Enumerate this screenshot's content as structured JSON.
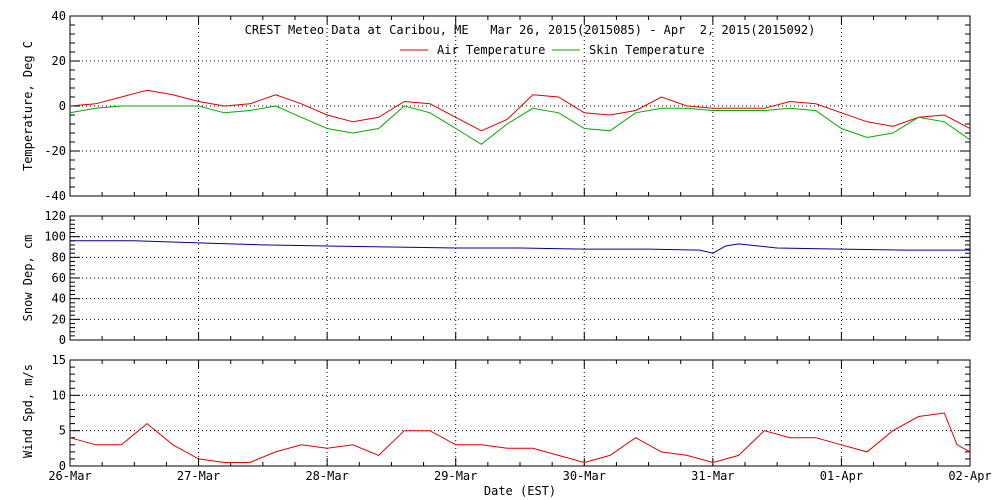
{
  "chart_data": [
    {
      "type": "line",
      "title": "CREST Meteo Data at Caribou, ME   Mar 26, 2015(2015085) - Apr  2, 2015(2015092)",
      "ylabel": "Temperature, Deg C",
      "ylim": [
        -40,
        40
      ],
      "yticks": [
        -40,
        -20,
        0,
        20,
        40
      ],
      "grid": true,
      "legend_position": "top-center",
      "x_unit": "days after 26-Mar 00:00 EST",
      "series": [
        {
          "name": "Air Temperature",
          "color": "#dd0000",
          "x": [
            0,
            0.2,
            0.4,
            0.6,
            0.8,
            1.0,
            1.2,
            1.4,
            1.6,
            1.8,
            2.0,
            2.2,
            2.4,
            2.6,
            2.8,
            3.0,
            3.2,
            3.4,
            3.6,
            3.8,
            4.0,
            4.2,
            4.4,
            4.6,
            4.8,
            5.0,
            5.2,
            5.4,
            5.6,
            5.8,
            6.0,
            6.2,
            6.4,
            6.6,
            6.8,
            7.0
          ],
          "values": [
            0,
            1,
            4,
            7,
            5,
            2,
            0,
            1,
            5,
            1,
            -4,
            -7,
            -5,
            2,
            1,
            -5,
            -11,
            -6,
            5,
            4,
            -3,
            -4,
            -2,
            4,
            0,
            -1,
            -1,
            -1,
            2,
            1,
            -3,
            -7,
            -9,
            -5,
            -4,
            -10
          ]
        },
        {
          "name": "Skin Temperature",
          "color": "#00aa00",
          "x": [
            0,
            0.2,
            0.4,
            0.6,
            0.8,
            1.0,
            1.2,
            1.4,
            1.6,
            1.8,
            2.0,
            2.2,
            2.4,
            2.6,
            2.8,
            3.0,
            3.2,
            3.4,
            3.6,
            3.8,
            4.0,
            4.2,
            4.4,
            4.6,
            4.8,
            5.0,
            5.2,
            5.4,
            5.6,
            5.8,
            6.0,
            6.2,
            6.4,
            6.6,
            6.8,
            7.0
          ],
          "values": [
            -3,
            -1,
            0,
            0,
            0,
            0,
            -3,
            -2,
            0,
            -5,
            -10,
            -12,
            -10,
            0,
            -3,
            -10,
            -17,
            -8,
            -1,
            -3,
            -10,
            -11,
            -3,
            -1,
            -1,
            -2,
            -2,
            -2,
            -1,
            -2,
            -10,
            -14,
            -12,
            -5,
            -7,
            -15
          ]
        }
      ]
    },
    {
      "type": "line",
      "ylabel": "Snow Dep, cm",
      "ylim": [
        0,
        120
      ],
      "yticks": [
        0,
        20,
        40,
        60,
        80,
        100,
        120
      ],
      "grid": true,
      "series": [
        {
          "color": "#000099",
          "x": [
            0,
            0.5,
            1.0,
            1.5,
            2.0,
            2.5,
            3.0,
            3.5,
            4.0,
            4.5,
            4.9,
            5.0,
            5.1,
            5.2,
            5.5,
            6.0,
            6.5,
            7.0
          ],
          "values": [
            96,
            96,
            94,
            92,
            91,
            90,
            89,
            89,
            88,
            88,
            87,
            84,
            91,
            93,
            89,
            88,
            87,
            87
          ]
        }
      ]
    },
    {
      "type": "line",
      "xlabel": "Date (EST)",
      "ylabel": "Wind Spd, m/s",
      "ylim": [
        0,
        15
      ],
      "yticks": [
        0,
        5,
        10,
        15
      ],
      "grid": true,
      "x_tick_labels": [
        "26-Mar",
        "27-Mar",
        "28-Mar",
        "29-Mar",
        "30-Mar",
        "31-Mar",
        "01-Apr",
        "02-Apr"
      ],
      "series": [
        {
          "color": "#dd0000",
          "x": [
            0,
            0.2,
            0.4,
            0.6,
            0.8,
            1.0,
            1.2,
            1.4,
            1.6,
            1.8,
            2.0,
            2.2,
            2.4,
            2.6,
            2.8,
            3.0,
            3.2,
            3.4,
            3.6,
            3.8,
            4.0,
            4.2,
            4.4,
            4.6,
            4.8,
            5.0,
            5.2,
            5.4,
            5.6,
            5.8,
            6.0,
            6.2,
            6.4,
            6.6,
            6.8,
            6.9,
            7.0
          ],
          "values": [
            4,
            3,
            3,
            6,
            3,
            1,
            0.5,
            0.5,
            2,
            3,
            2.5,
            3,
            1.5,
            5,
            5,
            3,
            3,
            2.5,
            2.5,
            1.5,
            0.5,
            1.5,
            4,
            2,
            1.5,
            0.5,
            1.5,
            5,
            4,
            4,
            3,
            2,
            5,
            7,
            7.5,
            3,
            2
          ]
        }
      ]
    }
  ]
}
